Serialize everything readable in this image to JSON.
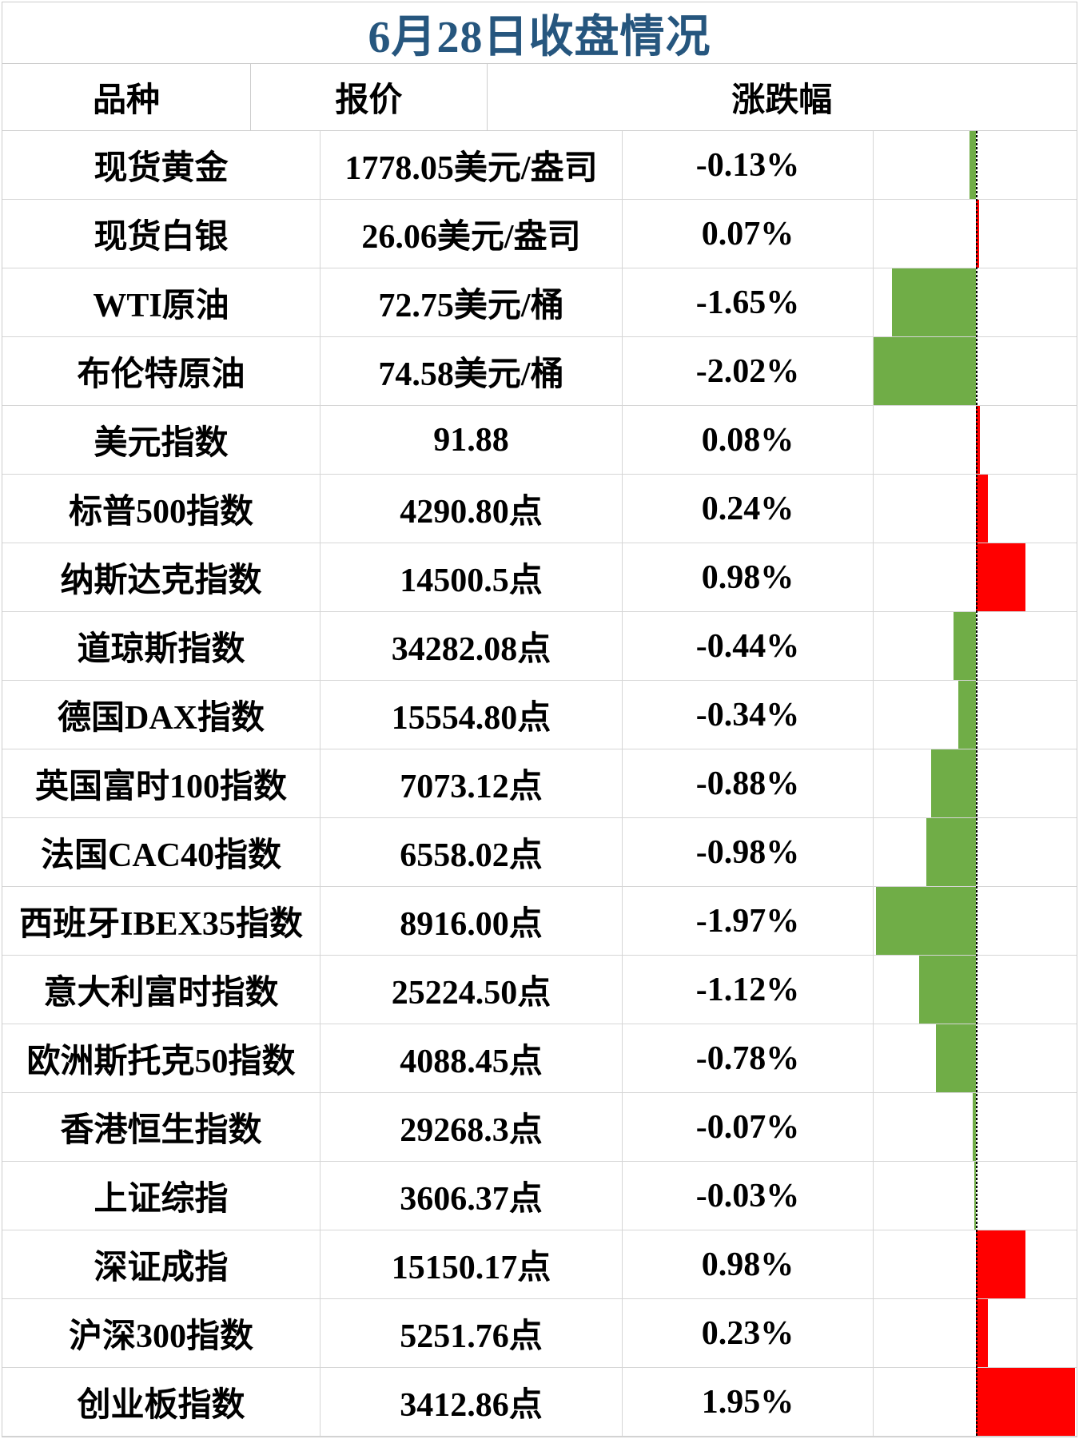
{
  "title": "6月28日收盘情况",
  "columns": {
    "name": "品种",
    "quote": "报价",
    "change": "涨跌幅"
  },
  "colors": {
    "title_text": "#26567E",
    "positive_bar": "#FF0000",
    "negative_bar": "#70AD47",
    "grid": "#D6D6D6",
    "text": "#000000"
  },
  "rows": [
    {
      "name": "现货黄金",
      "quote": "1778.05美元/盎司",
      "change": "-0.13%",
      "change_value": -0.13
    },
    {
      "name": "现货白银",
      "quote": "26.06美元/盎司",
      "change": "0.07%",
      "change_value": 0.07
    },
    {
      "name": "WTI原油",
      "quote": "72.75美元/桶",
      "change": "-1.65%",
      "change_value": -1.65
    },
    {
      "name": "布伦特原油",
      "quote": "74.58美元/桶",
      "change": "-2.02%",
      "change_value": -2.02
    },
    {
      "name": "美元指数",
      "quote": "91.88",
      "change": "0.08%",
      "change_value": 0.08
    },
    {
      "name": "标普500指数",
      "quote": "4290.80点",
      "change": "0.24%",
      "change_value": 0.24
    },
    {
      "name": "纳斯达克指数",
      "quote": "14500.5点",
      "change": "0.98%",
      "change_value": 0.98
    },
    {
      "name": "道琼斯指数",
      "quote": "34282.08点",
      "change": "-0.44%",
      "change_value": -0.44
    },
    {
      "name": "德国DAX指数",
      "quote": "15554.80点",
      "change": "-0.34%",
      "change_value": -0.34
    },
    {
      "name": "英国富时100指数",
      "quote": "7073.12点",
      "change": "-0.88%",
      "change_value": -0.88
    },
    {
      "name": "法国CAC40指数",
      "quote": "6558.02点",
      "change": "-0.98%",
      "change_value": -0.98
    },
    {
      "name": "西班牙IBEX35指数",
      "quote": "8916.00点",
      "change": "-1.97%",
      "change_value": -1.97
    },
    {
      "name": "意大利富时指数",
      "quote": "25224.50点",
      "change": "-1.12%",
      "change_value": -1.12
    },
    {
      "name": "欧洲斯托克50指数",
      "quote": "4088.45点",
      "change": "-0.78%",
      "change_value": -0.78
    },
    {
      "name": "香港恒生指数",
      "quote": "29268.3点",
      "change": "-0.07%",
      "change_value": -0.07
    },
    {
      "name": "上证综指",
      "quote": "3606.37点",
      "change": "-0.03%",
      "change_value": -0.03
    },
    {
      "name": "深证成指",
      "quote": "15150.17点",
      "change": "0.98%",
      "change_value": 0.98
    },
    {
      "name": "沪深300指数",
      "quote": "5251.76点",
      "change": "0.23%",
      "change_value": 0.23
    },
    {
      "name": "创业板指数",
      "quote": "3412.86点",
      "change": "1.95%",
      "change_value": 1.95
    }
  ],
  "chart_data": {
    "type": "bar",
    "orientation": "horizontal",
    "title": "6月28日收盘情况",
    "categories": [
      "现货黄金",
      "现货白银",
      "WTI原油",
      "布伦特原油",
      "美元指数",
      "标普500指数",
      "纳斯达克指数",
      "道琼斯指数",
      "德国DAX指数",
      "英国富时100指数",
      "法国CAC40指数",
      "西班牙IBEX35指数",
      "意大利富时指数",
      "欧洲斯托克50指数",
      "香港恒生指数",
      "上证综指",
      "深证成指",
      "沪深300指数",
      "创业板指数"
    ],
    "values": [
      -0.13,
      0.07,
      -1.65,
      -2.02,
      0.08,
      0.24,
      0.98,
      -0.44,
      -0.34,
      -0.88,
      -0.98,
      -1.97,
      -1.12,
      -0.78,
      -0.07,
      -0.03,
      0.98,
      0.23,
      1.95
    ],
    "quotes": [
      "1778.05美元/盎司",
      "26.06美元/盎司",
      "72.75美元/桶",
      "74.58美元/桶",
      "91.88",
      "4290.80点",
      "14500.5点",
      "34282.08点",
      "15554.80点",
      "7073.12点",
      "6558.02点",
      "8916.00点",
      "25224.50点",
      "4088.45点",
      "29268.3点",
      "3606.37点",
      "15150.17点",
      "5251.76点",
      "3412.86点"
    ],
    "value_suffix": "%",
    "xlim": [
      -2.02,
      1.95
    ],
    "zero_axis": "dashed vertical line",
    "positive_color": "#FF0000",
    "negative_color": "#70AD47",
    "grid": true,
    "legend_position": "none"
  }
}
